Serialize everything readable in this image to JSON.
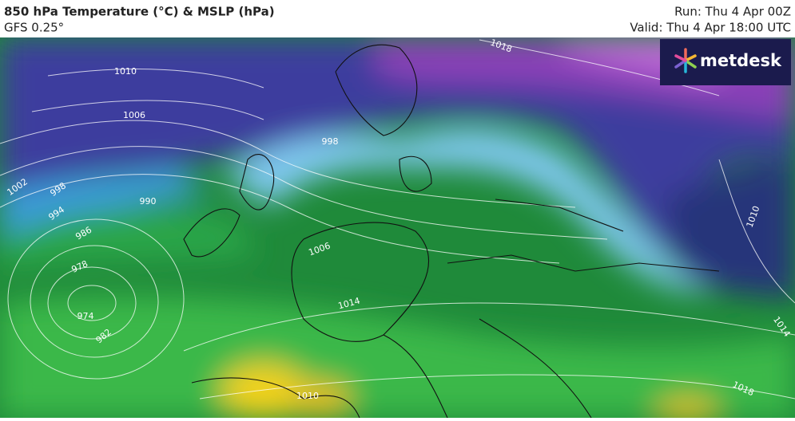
{
  "header": {
    "title": "850 hPa Temperature (°C) & MSLP (hPa)",
    "subtitle": "GFS 0.25°",
    "run": "Run: Thu 4 Apr 00Z",
    "valid": "Valid: Thu 4 Apr 18:00 UTC"
  },
  "logo": "metdesk",
  "isobars": [
    1010,
    1006,
    1002,
    998,
    994,
    990,
    986,
    978,
    974,
    982,
    998,
    1006,
    1014,
    1018,
    1010,
    1014,
    1018,
    1010
  ]
}
